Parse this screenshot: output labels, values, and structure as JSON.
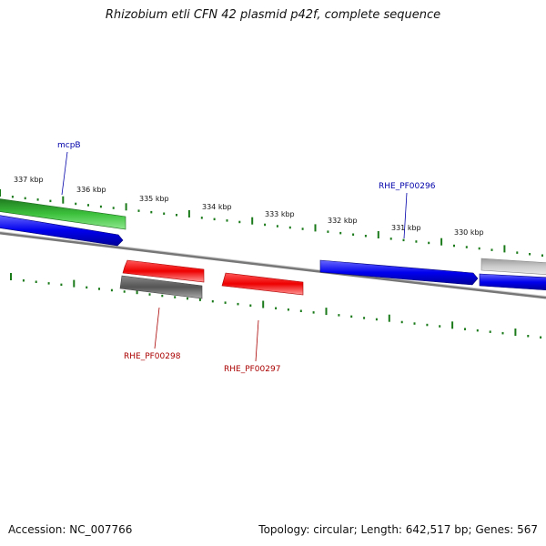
{
  "title": "Rhizobium etli CFN 42 plasmid p42f, complete sequence",
  "footer": {
    "accession": "Accession: NC_007766",
    "summary": "Topology: circular; Length: 642,517 bp; Genes: 567"
  },
  "ticks": [
    "337 kbp",
    "336 kbp",
    "335 kbp",
    "334 kbp",
    "333 kbp",
    "332 kbp",
    "331 kbp",
    "330 kbp"
  ],
  "gene_labels": [
    "mcpB",
    "RHE_PF00296",
    "RHE_PF00298",
    "RHE_PF00297"
  ],
  "colors": {
    "forward_label": "#0000aa",
    "reverse_label": "#aa0000",
    "tick": "#1a7a1a",
    "cds_blue": "#0000ee",
    "cds_green": "#33bb33",
    "cds_red": "#ee0000",
    "cds_darkgray": "#666666",
    "cds_lightgray": "#bbbbbb"
  }
}
